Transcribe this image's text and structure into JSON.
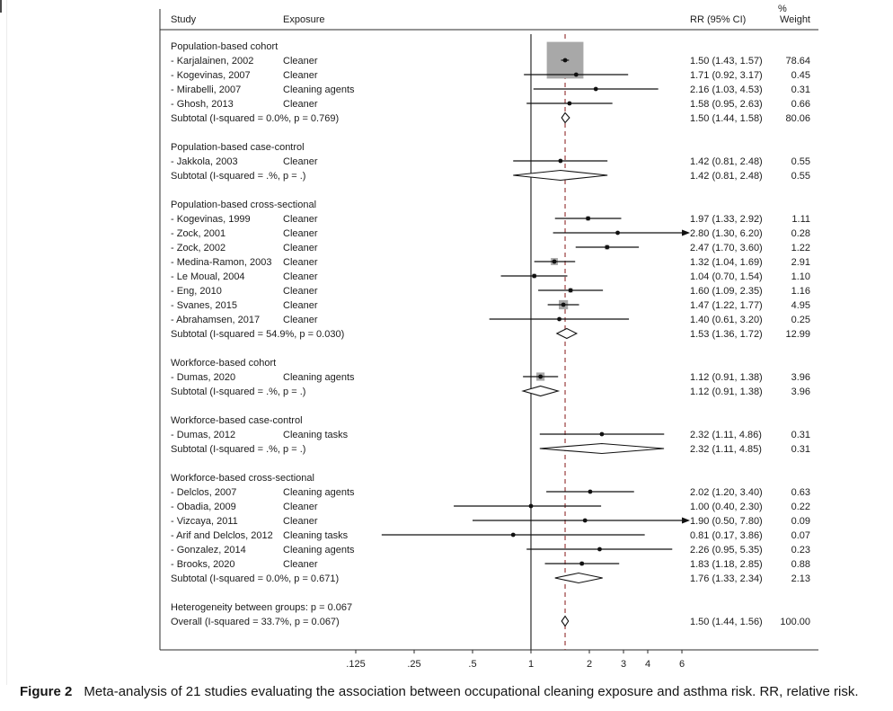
{
  "figure": {
    "caption_label": "Figure 2",
    "caption_text": "Meta-analysis of 21 studies evaluating the association between occupational cleaning exposure and asthma risk. RR, relative risk."
  },
  "chart_data": {
    "type": "forest",
    "columns": {
      "study": "Study",
      "exposure": "Exposure",
      "rr": "RR (95% CI)",
      "weight_pct": "%",
      "weight": "Weight"
    },
    "x_axis": {
      "scale": "log",
      "ticks": [
        0.125,
        0.25,
        0.5,
        1,
        2,
        3,
        4,
        6
      ],
      "tick_labels": [
        ".125",
        ".25",
        ".5",
        "1",
        "2",
        "3",
        "4",
        "6"
      ],
      "null_line": 1,
      "overall_line": 1.5,
      "clip_max": 6
    },
    "colors": {
      "line": "#2b2b2b",
      "marker": "#111111",
      "weight_square": "#a8a8a8",
      "overall_dashed": "#993d3d",
      "diamond_fill": "#ffffff"
    },
    "groups": [
      {
        "label": "Population-based cohort",
        "studies": [
          {
            "study": "- Karjalainen, 2002",
            "exposure": "Cleaner",
            "rr": 1.5,
            "ci": [
              1.43,
              1.57
            ],
            "rr_text": "1.50 (1.43, 1.57)",
            "weight": "78.64"
          },
          {
            "study": "- Kogevinas, 2007",
            "exposure": "Cleaner",
            "rr": 1.71,
            "ci": [
              0.92,
              3.17
            ],
            "rr_text": "1.71 (0.92, 3.17)",
            "weight": "0.45"
          },
          {
            "study": "- Mirabelli, 2007",
            "exposure": "Cleaning agents",
            "rr": 2.16,
            "ci": [
              1.03,
              4.53
            ],
            "rr_text": "2.16 (1.03, 4.53)",
            "weight": "0.31"
          },
          {
            "study": "- Ghosh, 2013",
            "exposure": "Cleaner",
            "rr": 1.58,
            "ci": [
              0.95,
              2.63
            ],
            "rr_text": "1.58 (0.95, 2.63)",
            "weight": "0.66"
          }
        ],
        "subtotal": {
          "label": "Subtotal  (I-squared = 0.0%, p = 0.769)",
          "rr": 1.5,
          "ci": [
            1.44,
            1.58
          ],
          "rr_text": "1.50 (1.44, 1.58)",
          "weight": "80.06"
        }
      },
      {
        "label": "Population-based case-control",
        "studies": [
          {
            "study": "- Jakkola, 2003",
            "exposure": "Cleaner",
            "rr": 1.42,
            "ci": [
              0.81,
              2.48
            ],
            "rr_text": "1.42 (0.81, 2.48)",
            "weight": "0.55"
          }
        ],
        "subtotal": {
          "label": "Subtotal  (I-squared = .%, p = .)",
          "rr": 1.42,
          "ci": [
            0.81,
            2.48
          ],
          "rr_text": "1.42 (0.81, 2.48)",
          "weight": "0.55"
        }
      },
      {
        "label": "Population-based cross-sectional",
        "studies": [
          {
            "study": "- Kogevinas, 1999",
            "exposure": "Cleaner",
            "rr": 1.97,
            "ci": [
              1.33,
              2.92
            ],
            "rr_text": "1.97 (1.33, 2.92)",
            "weight": "1.11"
          },
          {
            "study": "- Zock, 2001",
            "exposure": "Cleaner",
            "rr": 2.8,
            "ci": [
              1.3,
              6.2
            ],
            "rr_text": "2.80 (1.30, 6.20)",
            "weight": "0.28"
          },
          {
            "study": "- Zock, 2002",
            "exposure": "Cleaner",
            "rr": 2.47,
            "ci": [
              1.7,
              3.6
            ],
            "rr_text": "2.47 (1.70, 3.60)",
            "weight": "1.22"
          },
          {
            "study": "- Medina-Ramon, 2003",
            "exposure": "Cleaner",
            "rr": 1.32,
            "ci": [
              1.04,
              1.69
            ],
            "rr_text": "1.32 (1.04, 1.69)",
            "weight": "2.91"
          },
          {
            "study": "- Le Moual, 2004",
            "exposure": "Cleaner",
            "rr": 1.04,
            "ci": [
              0.7,
              1.54
            ],
            "rr_text": "1.04 (0.70, 1.54)",
            "weight": "1.10"
          },
          {
            "study": "- Eng, 2010",
            "exposure": "Cleaner",
            "rr": 1.6,
            "ci": [
              1.09,
              2.35
            ],
            "rr_text": "1.60 (1.09, 2.35)",
            "weight": "1.16"
          },
          {
            "study": "- Svanes, 2015",
            "exposure": "Cleaner",
            "rr": 1.47,
            "ci": [
              1.22,
              1.77
            ],
            "rr_text": "1.47 (1.22, 1.77)",
            "weight": "4.95"
          },
          {
            "study": "- Abrahamsen, 2017",
            "exposure": "Cleaner",
            "rr": 1.4,
            "ci": [
              0.61,
              3.2
            ],
            "rr_text": "1.40 (0.61, 3.20)",
            "weight": "0.25"
          }
        ],
        "subtotal": {
          "label": "Subtotal  (I-squared = 54.9%, p = 0.030)",
          "rr": 1.53,
          "ci": [
            1.36,
            1.72
          ],
          "rr_text": "1.53 (1.36, 1.72)",
          "weight": "12.99"
        }
      },
      {
        "label": "Workforce-based cohort",
        "studies": [
          {
            "study": "- Dumas, 2020",
            "exposure": "Cleaning agents",
            "rr": 1.12,
            "ci": [
              0.91,
              1.38
            ],
            "rr_text": "1.12 (0.91, 1.38)",
            "weight": "3.96"
          }
        ],
        "subtotal": {
          "label": "Subtotal  (I-squared = .%, p = .)",
          "rr": 1.12,
          "ci": [
            0.91,
            1.38
          ],
          "rr_text": "1.12 (0.91, 1.38)",
          "weight": "3.96"
        }
      },
      {
        "label": "Workforce-based case-control",
        "studies": [
          {
            "study": "- Dumas, 2012",
            "exposure": "Cleaning tasks",
            "rr": 2.32,
            "ci": [
              1.11,
              4.86
            ],
            "rr_text": "2.32 (1.11, 4.86)",
            "weight": "0.31"
          }
        ],
        "subtotal": {
          "label": "Subtotal  (I-squared = .%, p = .)",
          "rr": 2.32,
          "ci": [
            1.11,
            4.85
          ],
          "rr_text": "2.32 (1.11, 4.85)",
          "weight": "0.31"
        }
      },
      {
        "label": "Workforce-based cross-sectional",
        "studies": [
          {
            "study": "- Delclos, 2007",
            "exposure": "Cleaning agents",
            "rr": 2.02,
            "ci": [
              1.2,
              3.4
            ],
            "rr_text": "2.02 (1.20, 3.40)",
            "weight": "0.63"
          },
          {
            "study": "- Obadia, 2009",
            "exposure": "Cleaner",
            "rr": 1.0,
            "ci": [
              0.4,
              2.3
            ],
            "rr_text": "1.00 (0.40, 2.30)",
            "weight": "0.22"
          },
          {
            "study": "- Vizcaya, 2011",
            "exposure": "Cleaner",
            "rr": 1.9,
            "ci": [
              0.5,
              7.8
            ],
            "rr_text": "1.90 (0.50, 7.80)",
            "weight": "0.09"
          },
          {
            "study": "- Arif and Delclos, 2012",
            "exposure": "Cleaning tasks",
            "rr": 0.81,
            "ci": [
              0.17,
              3.86
            ],
            "rr_text": "0.81 (0.17, 3.86)",
            "weight": "0.07"
          },
          {
            "study": "- Gonzalez, 2014",
            "exposure": "Cleaning agents",
            "rr": 2.26,
            "ci": [
              0.95,
              5.35
            ],
            "rr_text": "2.26 (0.95, 5.35)",
            "weight": "0.23"
          },
          {
            "study": "- Brooks, 2020",
            "exposure": "Cleaner",
            "rr": 1.83,
            "ci": [
              1.18,
              2.85
            ],
            "rr_text": "1.83 (1.18, 2.85)",
            "weight": "0.88"
          }
        ],
        "subtotal": {
          "label": "Subtotal  (I-squared = 0.0%, p = 0.671)",
          "rr": 1.76,
          "ci": [
            1.33,
            2.34
          ],
          "rr_text": "1.76 (1.33, 2.34)",
          "weight": "2.13"
        }
      }
    ],
    "heterogeneity_note": "Heterogeneity between groups: p = 0.067",
    "overall": {
      "label": "Overall  (I-squared = 33.7%, p = 0.067)",
      "rr": 1.5,
      "ci": [
        1.44,
        1.56
      ],
      "rr_text": "1.50 (1.44, 1.56)",
      "weight": "100.00"
    }
  }
}
